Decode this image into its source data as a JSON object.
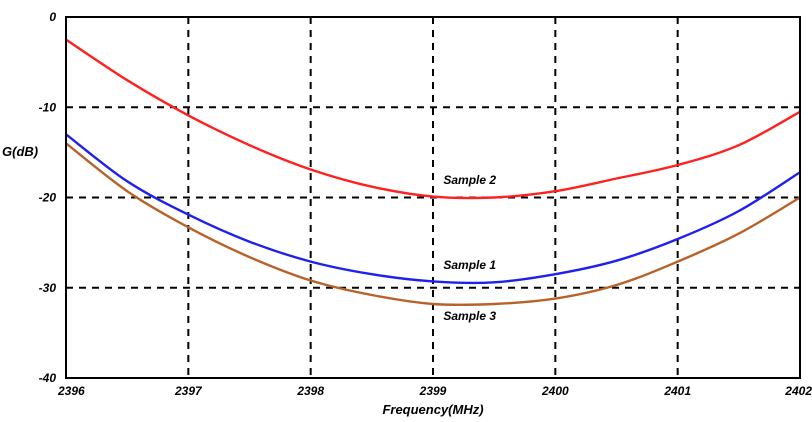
{
  "chart_data": {
    "type": "line",
    "title": "",
    "xlabel": "Frequency(MHz)",
    "ylabel": "G(dB)",
    "xlim": [
      2396,
      2402
    ],
    "ylim": [
      -40,
      0
    ],
    "grid": true,
    "x_ticks": [
      {
        "value": 2396,
        "label": "2396"
      },
      {
        "value": 2397,
        "label": "2397"
      },
      {
        "value": 2398,
        "label": "2398"
      },
      {
        "value": 2399,
        "label": "2399"
      },
      {
        "value": 2400,
        "label": "2400"
      },
      {
        "value": 2401,
        "label": "2401"
      },
      {
        "value": 2402,
        "label": "2402"
      }
    ],
    "y_ticks": [
      {
        "value": 0,
        "label": "0"
      },
      {
        "value": -10,
        "label": "-10"
      },
      {
        "value": -20,
        "label": "-20"
      },
      {
        "value": -30,
        "label": "-30"
      },
      {
        "value": -40,
        "label": "-40"
      }
    ],
    "x": [
      2396,
      2396.5,
      2397,
      2397.5,
      2398,
      2398.5,
      2399,
      2399.5,
      2400,
      2400.5,
      2401,
      2401.5,
      2402
    ],
    "series": [
      {
        "name": "Sample 2",
        "color": "#ff2020",
        "values": [
          -2.5,
          -7.0,
          -10.9,
          -14.2,
          -16.9,
          -18.8,
          -19.9,
          -20.0,
          -19.3,
          -17.9,
          -16.4,
          -14.2,
          -10.5
        ],
        "label_at": [
          2399.3,
          -18.5
        ]
      },
      {
        "name": "Sample 1",
        "color": "#2020ee",
        "values": [
          -13.0,
          -18.2,
          -21.9,
          -24.9,
          -27.1,
          -28.5,
          -29.3,
          -29.4,
          -28.5,
          -27.0,
          -24.6,
          -21.5,
          -17.2
        ],
        "label_at": [
          2399.3,
          -27.9
        ]
      },
      {
        "name": "Sample 3",
        "color": "#b8622a",
        "values": [
          -14.0,
          -19.3,
          -23.3,
          -26.6,
          -29.2,
          -30.8,
          -31.8,
          -31.8,
          -31.2,
          -29.7,
          -27.1,
          -24.0,
          -20.0
        ],
        "label_at": [
          2399.3,
          -33.6
        ]
      }
    ]
  }
}
